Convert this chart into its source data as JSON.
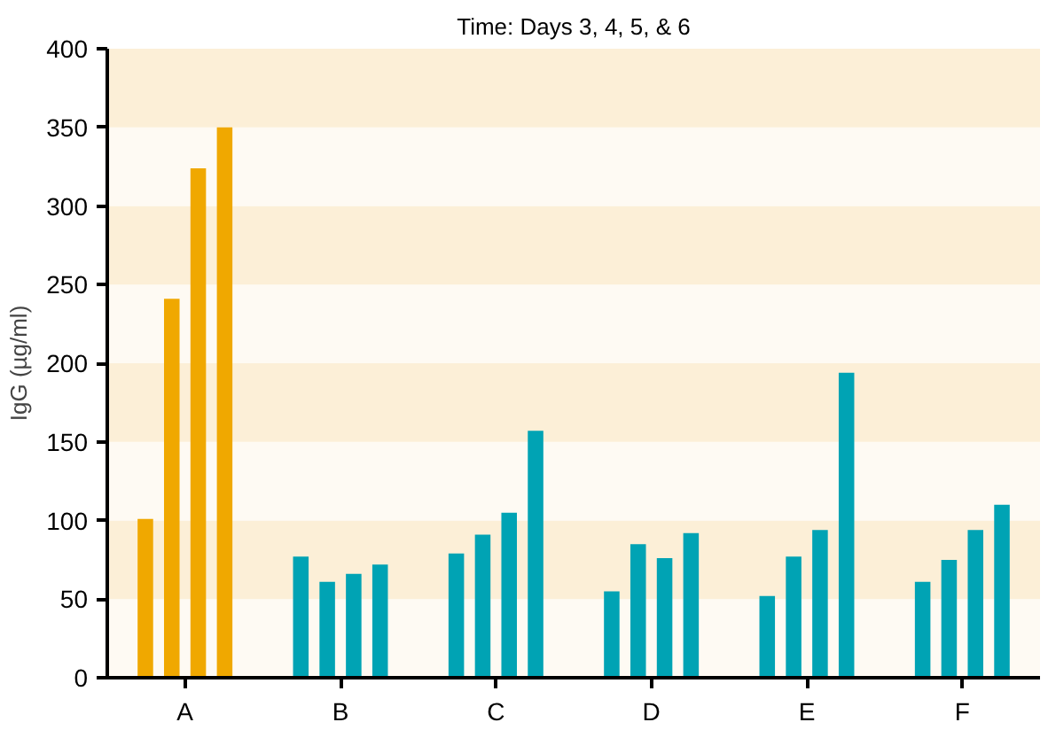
{
  "chart_data": {
    "type": "bar",
    "title": "Time: Days 3, 4, 5, & 6",
    "ylabel": "IgG (µg/ml)",
    "categories": [
      "A",
      "B",
      "C",
      "D",
      "E",
      "F"
    ],
    "series": [
      {
        "colors": [
          "#f0a800",
          "#00a3b4",
          "#00a3b4",
          "#00a3b4",
          "#00a3b4",
          "#00a3b4"
        ],
        "values": [
          101,
          77,
          79,
          55,
          52,
          61
        ]
      },
      {
        "colors": [
          "#f0a800",
          "#00a3b4",
          "#00a3b4",
          "#00a3b4",
          "#00a3b4",
          "#00a3b4"
        ],
        "values": [
          241,
          61,
          91,
          85,
          77,
          75
        ]
      },
      {
        "colors": [
          "#f0a800",
          "#00a3b4",
          "#00a3b4",
          "#00a3b4",
          "#00a3b4",
          "#00a3b4"
        ],
        "values": [
          324,
          66,
          105,
          76,
          94,
          94
        ]
      },
      {
        "colors": [
          "#f0a800",
          "#00a3b4",
          "#00a3b4",
          "#00a3b4",
          "#00a3b4",
          "#00a3b4"
        ],
        "values": [
          350,
          72,
          157,
          92,
          194,
          110
        ]
      }
    ],
    "ylim": [
      0,
      400
    ],
    "yticks": [
      0,
      50,
      100,
      150,
      200,
      250,
      300,
      350,
      400
    ],
    "grid": false,
    "bands": [
      {
        "axis": "y",
        "from": 0,
        "to": 50,
        "color": "#fefaf3"
      },
      {
        "axis": "y",
        "from": 50,
        "to": 100,
        "color": "#fcefd7"
      },
      {
        "axis": "y",
        "from": 100,
        "to": 150,
        "color": "#fefaf3"
      },
      {
        "axis": "y",
        "from": 150,
        "to": 200,
        "color": "#fcefd7"
      },
      {
        "axis": "y",
        "from": 200,
        "to": 250,
        "color": "#fefaf3"
      },
      {
        "axis": "y",
        "from": 250,
        "to": 300,
        "color": "#fcefd7"
      },
      {
        "axis": "y",
        "from": 300,
        "to": 350,
        "color": "#fefaf3"
      },
      {
        "axis": "y",
        "from": 350,
        "to": 400,
        "color": "#fcefd7"
      }
    ]
  }
}
